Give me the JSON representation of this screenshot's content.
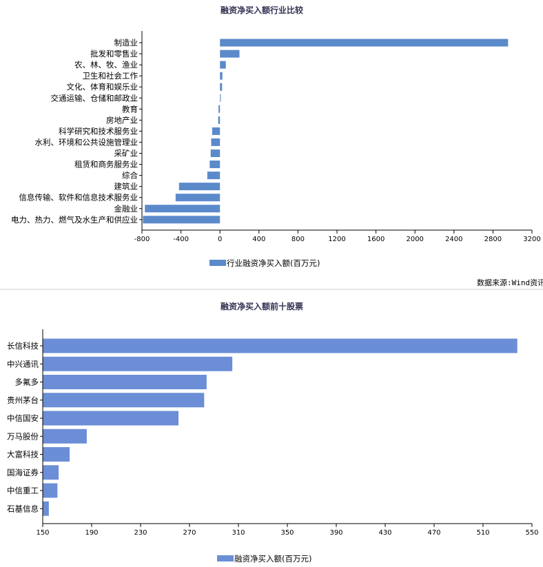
{
  "chart_data": [
    {
      "type": "bar",
      "orientation": "horizontal",
      "title": "融资净买入额行业比较",
      "categories": [
        "制造业",
        "批发和零售业",
        "农、林、牧、渔业",
        "卫生和社会工作",
        "文化、体育和娱乐业",
        "交通运输、仓储和邮政业",
        "教育",
        "房地产业",
        "科学研究和技术服务业",
        "水利、环境和公共设施管理业",
        "采矿业",
        "租赁和商务服务业",
        "综合",
        "建筑业",
        "信息传输、软件和信息技术服务业",
        "金融业",
        "电力、热力、燃气及水生产和供应业"
      ],
      "series": [
        {
          "name": "行业融资净买入额(百万元)",
          "values": [
            2955,
            200,
            60,
            25,
            22,
            8,
            -15,
            -18,
            -80,
            -90,
            -95,
            -105,
            -130,
            -420,
            -455,
            -770,
            -790
          ]
        }
      ],
      "xlim": [
        -800,
        3200
      ],
      "xticks": [
        "-800",
        "-400",
        "0",
        "400",
        "800",
        "1200",
        "1600",
        "2000",
        "2400",
        "2800",
        "3200"
      ],
      "color": "#5b8acb",
      "legend_position": "bottom-center",
      "source": "数据来源:Wind资讯"
    },
    {
      "type": "bar",
      "orientation": "horizontal",
      "title": "融资净买入额前十股票",
      "categories": [
        "长信科技",
        "中兴通讯",
        "多氟多",
        "贵州茅台",
        "中信国安",
        "万马股份",
        "大富科技",
        "国海证券",
        "中信重工",
        "石基信息"
      ],
      "series": [
        {
          "name": "融资净买入额(百万元)",
          "values": [
            538,
            305,
            284,
            282,
            261,
            186,
            172,
            163,
            162,
            155
          ]
        }
      ],
      "xlim": [
        150,
        550
      ],
      "xticks": [
        "150",
        "190",
        "230",
        "270",
        "310",
        "350",
        "390",
        "430",
        "470",
        "510",
        "550"
      ],
      "color": "#6b8ed6",
      "legend_position": "bottom-center"
    }
  ]
}
